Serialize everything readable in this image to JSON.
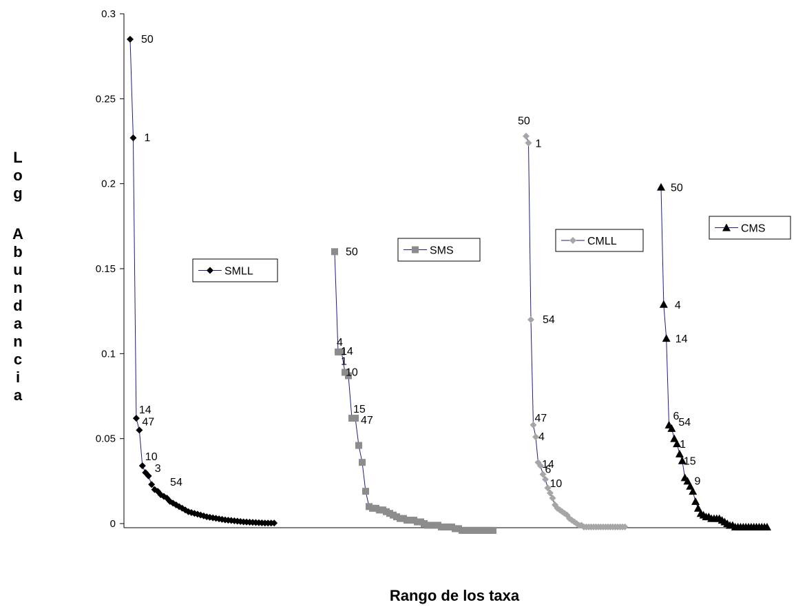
{
  "chart_data": {
    "type": "line",
    "xlabel": "Rango de los taxa",
    "ylabel": "Log Abundancia",
    "ylim": [
      0,
      0.3
    ],
    "yticks": [
      "0",
      "0.05",
      "0.1",
      "0.15",
      "0.2",
      "0.25",
      "0.3"
    ],
    "x_ticks_shown": false,
    "grid": false,
    "series": [
      {
        "name": "SMLL",
        "color": "#000000",
        "marker": "diamond",
        "values": [
          0.285,
          0.227,
          0.062,
          0.055,
          0.034,
          0.03,
          0.028,
          0.023,
          0.02,
          0.019,
          0.017,
          0.016,
          0.015,
          0.013,
          0.012,
          0.011,
          0.01,
          0.009,
          0.008,
          0.007,
          0.0065,
          0.006,
          0.0055,
          0.005,
          0.0045,
          0.004,
          0.0037,
          0.0034,
          0.0031,
          0.0028,
          0.0025,
          0.0022,
          0.002,
          0.0018,
          0.0016,
          0.0014,
          0.0012,
          0.001,
          0.0009,
          0.0008,
          0.0007,
          0.0006,
          0.0005,
          0.0004,
          0.0003,
          0.0003,
          0.0003,
          0.0003
        ],
        "labels": [
          {
            "index": 0,
            "text": "50"
          },
          {
            "index": 1,
            "text": "1"
          },
          {
            "index": 2,
            "text": "14"
          },
          {
            "index": 3,
            "text": "47"
          },
          {
            "index": 4,
            "text": "10"
          },
          {
            "index": 6,
            "text": "3"
          },
          {
            "index": 9,
            "text": "54"
          }
        ]
      },
      {
        "name": "SMS",
        "color": "#8c8c8c",
        "marker": "square",
        "values": [
          0.16,
          0.101,
          0.101,
          0.089,
          0.087,
          0.062,
          0.062,
          0.046,
          0.036,
          0.019,
          0.01,
          0.009,
          0.009,
          0.008,
          0.008,
          0.007,
          0.006,
          0.005,
          0.004,
          0.003,
          0.003,
          0.002,
          0.002,
          0.002,
          0.001,
          0.001,
          0.0,
          -0.001,
          -0.001,
          -0.001,
          -0.001,
          -0.002,
          -0.002,
          -0.002,
          -0.002,
          -0.003,
          -0.003,
          -0.004,
          -0.004,
          -0.004,
          -0.004,
          -0.004,
          -0.004,
          -0.004,
          -0.004,
          -0.004,
          -0.004
        ],
        "labels": [
          {
            "index": 0,
            "text": "50"
          },
          {
            "index": 1,
            "text": "4"
          },
          {
            "index": 2,
            "text": "14"
          },
          {
            "index": 3,
            "text": "1"
          },
          {
            "index": 4,
            "text": "10"
          },
          {
            "index": 5,
            "text": "15"
          },
          {
            "index": 6,
            "text": "47"
          }
        ]
      },
      {
        "name": "CMLL",
        "color": "#a6a6a6",
        "marker": "diamond",
        "values": [
          0.228,
          0.224,
          0.12,
          0.058,
          0.051,
          0.036,
          0.034,
          0.029,
          0.026,
          0.021,
          0.018,
          0.015,
          0.011,
          0.009,
          0.008,
          0.007,
          0.006,
          0.005,
          0.003,
          0.002,
          0.001,
          0.0,
          -0.001,
          -0.001,
          -0.002,
          -0.002,
          -0.002,
          -0.002,
          -0.002,
          -0.002,
          -0.002,
          -0.002,
          -0.002,
          -0.002,
          -0.002,
          -0.002,
          -0.002,
          -0.002,
          -0.002,
          -0.002,
          -0.002,
          -0.002
        ],
        "labels": [
          {
            "index": 0,
            "text": "50"
          },
          {
            "index": 1,
            "text": "1"
          },
          {
            "index": 2,
            "text": "54"
          },
          {
            "index": 3,
            "text": "47"
          },
          {
            "index": 4,
            "text": "4"
          },
          {
            "index": 6,
            "text": "14"
          },
          {
            "index": 7,
            "text": "6"
          },
          {
            "index": 9,
            "text": "10"
          }
        ]
      },
      {
        "name": "CMS",
        "color": "#000000",
        "marker": "triangle",
        "values": [
          0.198,
          0.129,
          0.109,
          0.058,
          0.056,
          0.05,
          0.047,
          0.041,
          0.037,
          0.027,
          0.025,
          0.022,
          0.019,
          0.013,
          0.009,
          0.006,
          0.005,
          0.004,
          0.004,
          0.003,
          0.003,
          0.003,
          0.003,
          0.002,
          0.001,
          0.0,
          -0.001,
          -0.001,
          -0.002,
          -0.002,
          -0.002,
          -0.002,
          -0.002,
          -0.002,
          -0.002,
          -0.002,
          -0.002,
          -0.002,
          -0.002,
          -0.002,
          -0.002
        ],
        "labels": [
          {
            "index": 0,
            "text": "50"
          },
          {
            "index": 1,
            "text": "4"
          },
          {
            "index": 2,
            "text": "14"
          },
          {
            "index": 3,
            "text": "6"
          },
          {
            "index": 4,
            "text": "54"
          },
          {
            "index": 6,
            "text": "1"
          },
          {
            "index": 8,
            "text": "15"
          },
          {
            "index": 10,
            "text": "9"
          }
        ]
      }
    ]
  }
}
